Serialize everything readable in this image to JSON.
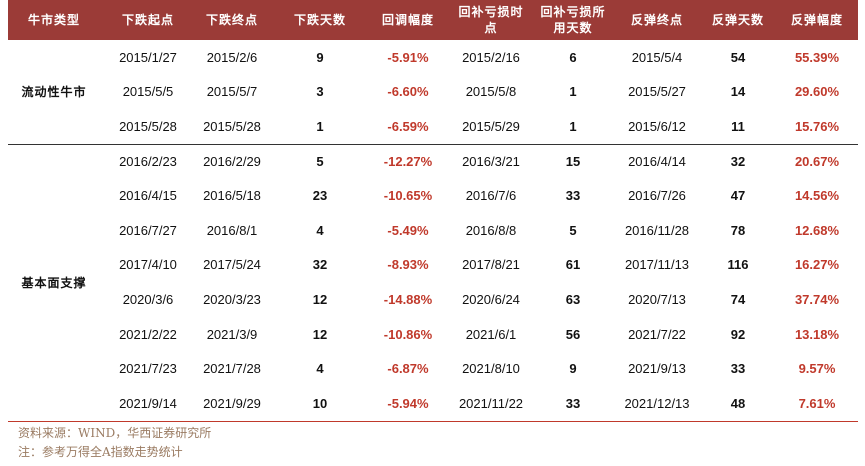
{
  "table": {
    "headers": [
      "牛市类型",
      "下跌起点",
      "下跌终点",
      "下跌天数",
      "回调幅度",
      "回补亏损时点",
      "回补亏损所用天数",
      "反弹终点",
      "反弹天数",
      "反弹幅度"
    ],
    "groups": [
      {
        "label": "流动性牛市",
        "rows": [
          [
            "2015/1/27",
            "2015/2/6",
            "9",
            "-5.91%",
            "2015/2/16",
            "6",
            "2015/5/4",
            "54",
            "55.39%"
          ],
          [
            "2015/5/5",
            "2015/5/7",
            "3",
            "-6.60%",
            "2015/5/8",
            "1",
            "2015/5/27",
            "14",
            "29.60%"
          ],
          [
            "2015/5/28",
            "2015/5/28",
            "1",
            "-6.59%",
            "2015/5/29",
            "1",
            "2015/6/12",
            "11",
            "15.76%"
          ]
        ]
      },
      {
        "label": "基本面支撑",
        "rows": [
          [
            "2016/2/23",
            "2016/2/29",
            "5",
            "-12.27%",
            "2016/3/21",
            "15",
            "2016/4/14",
            "32",
            "20.67%"
          ],
          [
            "2016/4/15",
            "2016/5/18",
            "23",
            "-10.65%",
            "2016/7/6",
            "33",
            "2016/7/26",
            "47",
            "14.56%"
          ],
          [
            "2016/7/27",
            "2016/8/1",
            "4",
            "-5.49%",
            "2016/8/8",
            "5",
            "2016/11/28",
            "78",
            "12.68%"
          ],
          [
            "2017/4/10",
            "2017/5/24",
            "32",
            "-8.93%",
            "2017/8/21",
            "61",
            "2017/11/13",
            "116",
            "16.27%"
          ],
          [
            "2020/3/6",
            "2020/3/23",
            "12",
            "-14.88%",
            "2020/6/24",
            "63",
            "2020/7/13",
            "74",
            "37.74%"
          ],
          [
            "2021/2/22",
            "2021/3/9",
            "12",
            "-10.86%",
            "2021/6/1",
            "56",
            "2021/7/22",
            "92",
            "13.18%"
          ],
          [
            "2021/7/23",
            "2021/7/28",
            "4",
            "-6.87%",
            "2021/8/10",
            "9",
            "2021/9/13",
            "33",
            "9.57%"
          ],
          [
            "2021/9/14",
            "2021/9/29",
            "10",
            "-5.94%",
            "2021/11/22",
            "33",
            "2021/12/13",
            "48",
            "7.61%"
          ]
        ]
      }
    ]
  },
  "footer": {
    "source": "资料来源：WIND，华西证券研究所",
    "note": "注：参考万得全A指数走势统计"
  }
}
